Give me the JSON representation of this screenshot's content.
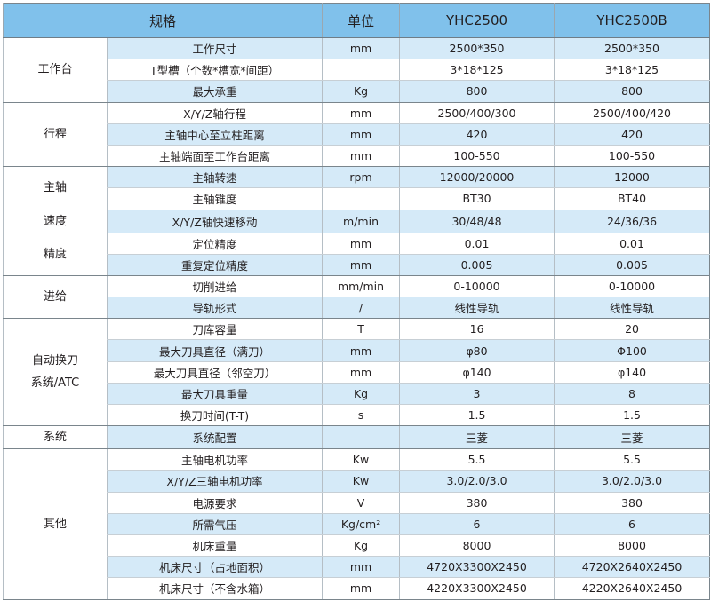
{
  "header": {
    "spec": "规格",
    "unit": "单位",
    "model_a": "YHC2500",
    "model_b": "YHC2500B"
  },
  "colors": {
    "header_bg": "#80c1eb",
    "shade_bg": "#d5eaf8"
  },
  "groups": [
    {
      "name": "工作台",
      "rows": [
        {
          "item": "工作尺寸",
          "unit": "mm",
          "a": "2500*350",
          "b": "2500*350",
          "shaded": true
        },
        {
          "item": "T型槽（个数*槽宽*间距）",
          "unit": "",
          "a": "3*18*125",
          "b": "3*18*125",
          "shaded": false
        },
        {
          "item": "最大承重",
          "unit": "Kg",
          "a": "800",
          "b": "800",
          "shaded": true
        }
      ]
    },
    {
      "name": "行程",
      "rows": [
        {
          "item": "X/Y/Z轴行程",
          "unit": "mm",
          "a": "2500/400/300",
          "b": "2500/400/420",
          "shaded": false
        },
        {
          "item": "主轴中心至立柱距离",
          "unit": "mm",
          "a": "420",
          "b": "420",
          "shaded": true
        },
        {
          "item": "主轴端面至工作台距离",
          "unit": "mm",
          "a": "100-550",
          "b": "100-550",
          "shaded": false
        }
      ]
    },
    {
      "name": "主轴",
      "rows": [
        {
          "item": "主轴转速",
          "unit": "rpm",
          "a": "12000/20000",
          "b": "12000",
          "shaded": true
        },
        {
          "item": "主轴锥度",
          "unit": "",
          "a": "BT30",
          "b": "BT40",
          "shaded": false
        }
      ]
    },
    {
      "name": "速度",
      "rows": [
        {
          "item": "X/Y/Z轴快速移动",
          "unit": "m/min",
          "a": "30/48/48",
          "b": "24/36/36",
          "shaded": true
        }
      ]
    },
    {
      "name": "精度",
      "rows": [
        {
          "item": "定位精度",
          "unit": "mm",
          "a": "0.01",
          "b": "0.01",
          "shaded": false
        },
        {
          "item": "重复定位精度",
          "unit": "mm",
          "a": "0.005",
          "b": "0.005",
          "shaded": true
        }
      ]
    },
    {
      "name": "进给",
      "rows": [
        {
          "item": "切削进给",
          "unit": "mm/min",
          "a": "0-10000",
          "b": "0-10000",
          "shaded": false
        },
        {
          "item": "导轨形式",
          "unit": "/",
          "a": "线性导轨",
          "b": "线性导轨",
          "shaded": true
        }
      ]
    },
    {
      "name": "自动换刀\n系统/ATC",
      "rows": [
        {
          "item": "刀库容量",
          "unit": "T",
          "a": "16",
          "b": "20",
          "shaded": false
        },
        {
          "item": "最大刀具直径（满刀）",
          "unit": "mm",
          "a": "φ80",
          "b": "Φ100",
          "shaded": true
        },
        {
          "item": "最大刀具直径（邻空刀）",
          "unit": "mm",
          "a": "φ140",
          "b": "φ140",
          "shaded": false
        },
        {
          "item": "最大刀具重量",
          "unit": "Kg",
          "a": "3",
          "b": "8",
          "shaded": true
        },
        {
          "item": "换刀时间(T-T)",
          "unit": "s",
          "a": "1.5",
          "b": "1.5",
          "shaded": false
        }
      ]
    },
    {
      "name": "系统",
      "rows": [
        {
          "item": "系统配置",
          "unit": "",
          "a": "三菱",
          "b": "三菱",
          "shaded": true
        }
      ]
    },
    {
      "name": "其他",
      "rows": [
        {
          "item": "主轴电机功率",
          "unit": "Kw",
          "a": "5.5",
          "b": "5.5",
          "shaded": false
        },
        {
          "item": "X/Y/Z三轴电机功率",
          "unit": "Kw",
          "a": "3.0/2.0/3.0",
          "b": "3.0/2.0/3.0",
          "shaded": true
        },
        {
          "item": "电源要求",
          "unit": "V",
          "a": "380",
          "b": "380",
          "shaded": false
        },
        {
          "item": "所需气压",
          "unit": "Kg/cm²",
          "a": "6",
          "b": "6",
          "shaded": true
        },
        {
          "item": "机床重量",
          "unit": "Kg",
          "a": "8000",
          "b": "8000",
          "shaded": false
        },
        {
          "item": "机床尺寸（占地面积）",
          "unit": "mm",
          "a": "4720X3300X2450",
          "b": "4720X2640X2450",
          "shaded": true
        },
        {
          "item": "机床尺寸（不含水箱）",
          "unit": "mm",
          "a": "4220X3300X2450",
          "b": "4220X2640X2450",
          "shaded": false
        }
      ]
    }
  ]
}
